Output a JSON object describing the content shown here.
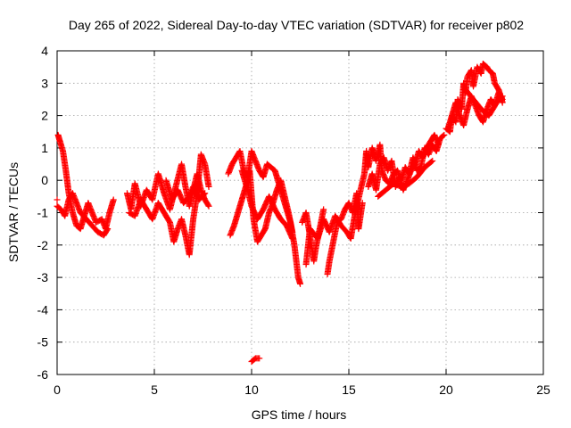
{
  "chart_data": {
    "type": "scatter",
    "title": "Day 265 of 2022, Sidereal Day-to-day VTEC variation (SDTVAR) for receiver p802",
    "xlabel": "GPS time / hours",
    "ylabel": "SDTVAR / TECUs",
    "xlim": [
      0,
      25
    ],
    "ylim": [
      -6,
      4
    ],
    "xticks": [
      0,
      5,
      10,
      15,
      20,
      25
    ],
    "yticks": [
      -6,
      -5,
      -4,
      -3,
      -2,
      -1,
      0,
      1,
      2,
      3,
      4
    ],
    "grid": true,
    "marker": "+",
    "color": "#ff0000",
    "series": [
      {
        "name": "p802",
        "trace": [
          [
            0.0,
            -0.6
          ],
          [
            0.05,
            1.4
          ],
          [
            0.15,
            1.2
          ],
          [
            0.3,
            0.9
          ],
          [
            0.45,
            0.3
          ],
          [
            0.6,
            -0.4
          ],
          [
            0.8,
            -1.0
          ],
          [
            1.0,
            -1.4
          ],
          [
            1.2,
            -1.5
          ],
          [
            1.4,
            -1.1
          ],
          [
            1.6,
            -0.7
          ],
          [
            1.8,
            -1.0
          ],
          [
            2.0,
            -1.3
          ],
          [
            2.3,
            -1.2
          ],
          [
            2.5,
            -1.5
          ],
          [
            2.7,
            -1.0
          ],
          [
            2.9,
            -0.6
          ],
          [
            0.0,
            -0.8
          ],
          [
            0.2,
            -0.9
          ],
          [
            0.4,
            -1.1
          ],
          [
            0.6,
            -0.6
          ],
          [
            0.8,
            -0.4
          ],
          [
            1.0,
            -0.7
          ],
          [
            1.2,
            -1.0
          ],
          [
            1.5,
            -1.2
          ],
          [
            1.8,
            -1.4
          ],
          [
            2.1,
            -1.6
          ],
          [
            2.4,
            -1.7
          ],
          [
            2.6,
            -1.5
          ],
          [
            3.6,
            -0.4
          ],
          [
            3.8,
            -0.9
          ],
          [
            4.0,
            -0.1
          ],
          [
            4.3,
            -0.8
          ],
          [
            4.6,
            -0.3
          ],
          [
            4.9,
            -0.6
          ],
          [
            5.2,
            0.2
          ],
          [
            5.5,
            -0.4
          ],
          [
            5.8,
            -0.9
          ],
          [
            6.1,
            -0.2
          ],
          [
            6.4,
            0.5
          ],
          [
            6.6,
            -0.2
          ],
          [
            6.8,
            -0.8
          ],
          [
            7.0,
            -0.3
          ],
          [
            7.2,
            0.2
          ],
          [
            7.4,
            -0.3
          ],
          [
            7.6,
            -0.6
          ],
          [
            7.8,
            -0.8
          ],
          [
            3.7,
            -1.0
          ],
          [
            4.0,
            -1.1
          ],
          [
            4.3,
            -0.6
          ],
          [
            4.6,
            -0.9
          ],
          [
            4.9,
            -1.2
          ],
          [
            5.2,
            -0.7
          ],
          [
            5.5,
            -1.0
          ],
          [
            5.8,
            -1.3
          ],
          [
            6.0,
            -1.9
          ],
          [
            6.2,
            -1.5
          ],
          [
            6.4,
            -1.2
          ],
          [
            6.6,
            -1.7
          ],
          [
            6.8,
            -2.3
          ],
          [
            7.0,
            -1.2
          ],
          [
            7.2,
            -0.4
          ],
          [
            7.4,
            0.8
          ],
          [
            7.6,
            0.5
          ],
          [
            7.8,
            -0.2
          ],
          [
            5.6,
            0.0
          ],
          [
            5.9,
            -0.6
          ],
          [
            6.2,
            -0.3
          ],
          [
            6.5,
            -0.7
          ],
          [
            6.8,
            -0.5
          ],
          [
            7.0,
            -0.2
          ],
          [
            7.3,
            -0.6
          ],
          [
            7.6,
            -0.4
          ],
          [
            8.8,
            0.2
          ],
          [
            9.0,
            0.5
          ],
          [
            9.2,
            0.7
          ],
          [
            9.4,
            0.9
          ],
          [
            9.6,
            0.3
          ],
          [
            9.8,
            0.1
          ],
          [
            10.0,
            0.9
          ],
          [
            10.2,
            0.6
          ],
          [
            10.4,
            0.3
          ],
          [
            10.6,
            0.1
          ],
          [
            10.8,
            0.5
          ],
          [
            11.0,
            0.4
          ],
          [
            11.2,
            0.3
          ],
          [
            11.4,
            -0.1
          ],
          [
            11.6,
            -0.5
          ],
          [
            11.8,
            -0.9
          ],
          [
            12.0,
            -1.3
          ],
          [
            12.2,
            -2.0
          ],
          [
            12.4,
            -3.0
          ],
          [
            12.5,
            -3.2
          ],
          [
            8.9,
            -1.7
          ],
          [
            9.1,
            -1.4
          ],
          [
            9.3,
            -1.0
          ],
          [
            9.5,
            -0.6
          ],
          [
            9.7,
            -0.2
          ],
          [
            9.9,
            0.3
          ],
          [
            10.1,
            -1.2
          ],
          [
            10.3,
            -1.9
          ],
          [
            10.5,
            -1.7
          ],
          [
            10.7,
            -1.5
          ],
          [
            10.9,
            -1.0
          ],
          [
            11.1,
            -0.7
          ],
          [
            11.3,
            -0.3
          ],
          [
            11.5,
            0.0
          ],
          [
            11.7,
            -0.5
          ],
          [
            11.9,
            -1.0
          ],
          [
            12.1,
            -1.6
          ],
          [
            9.5,
            0.3
          ],
          [
            9.8,
            -0.3
          ],
          [
            10.0,
            -0.8
          ],
          [
            10.3,
            -1.2
          ],
          [
            10.6,
            -0.9
          ],
          [
            10.9,
            -0.5
          ],
          [
            11.2,
            -0.9
          ],
          [
            11.5,
            -1.2
          ],
          [
            11.8,
            -1.4
          ],
          [
            12.1,
            -1.8
          ],
          [
            12.6,
            -1.3
          ],
          [
            12.8,
            -1.0
          ],
          [
            13.0,
            -1.7
          ],
          [
            13.2,
            -2.5
          ],
          [
            13.3,
            -2.1
          ],
          [
            13.5,
            -1.5
          ],
          [
            13.7,
            -0.9
          ],
          [
            13.9,
            -2.9
          ],
          [
            14.0,
            -2.5
          ],
          [
            14.2,
            -1.9
          ],
          [
            14.4,
            -1.3
          ],
          [
            14.6,
            -1.2
          ],
          [
            14.8,
            -0.9
          ],
          [
            15.0,
            -0.7
          ],
          [
            15.2,
            -1.0
          ],
          [
            15.4,
            -0.4
          ],
          [
            15.5,
            -1.5
          ],
          [
            15.7,
            -0.7
          ],
          [
            12.8,
            -2.6
          ],
          [
            13.0,
            -1.5
          ],
          [
            13.4,
            -1.8
          ],
          [
            13.7,
            -1.2
          ],
          [
            14.0,
            -1.6
          ],
          [
            14.3,
            -1.1
          ],
          [
            14.6,
            -1.4
          ],
          [
            14.9,
            -1.6
          ],
          [
            15.1,
            -1.8
          ],
          [
            15.3,
            -1.1
          ],
          [
            15.6,
            -0.3
          ],
          [
            15.8,
            0.2
          ],
          [
            15.9,
            0.9
          ],
          [
            16.0,
            0.4
          ],
          [
            16.2,
            1.0
          ],
          [
            16.4,
            0.6
          ],
          [
            16.6,
            1.1
          ],
          [
            16.7,
            0.3
          ],
          [
            16.9,
            0.0
          ],
          [
            17.1,
            -0.1
          ],
          [
            17.3,
            0.2
          ],
          [
            17.5,
            0.3
          ],
          [
            17.7,
            0.0
          ],
          [
            17.9,
            0.4
          ],
          [
            18.1,
            0.2
          ],
          [
            18.3,
            0.7
          ],
          [
            18.5,
            0.3
          ],
          [
            18.7,
            0.4
          ],
          [
            18.9,
            1.0
          ],
          [
            19.1,
            0.8
          ],
          [
            19.3,
            1.1
          ],
          [
            19.5,
            0.9
          ],
          [
            19.7,
            1.3
          ],
          [
            19.9,
            1.4
          ],
          [
            16.0,
            -0.2
          ],
          [
            16.2,
            0.2
          ],
          [
            16.4,
            -0.3
          ],
          [
            16.6,
            0.5
          ],
          [
            16.8,
            0.7
          ],
          [
            17.0,
            0.3
          ],
          [
            17.2,
            0.6
          ],
          [
            17.4,
            -0.2
          ],
          [
            17.6,
            0.1
          ],
          [
            17.8,
            -0.3
          ],
          [
            18.0,
            0.0
          ],
          [
            18.2,
            0.3
          ],
          [
            18.4,
            0.5
          ],
          [
            18.6,
            0.9
          ],
          [
            18.8,
            0.7
          ],
          [
            19.0,
            1.0
          ],
          [
            19.2,
            1.2
          ],
          [
            19.4,
            1.4
          ],
          [
            19.6,
            1.1
          ],
          [
            16.5,
            -0.5
          ],
          [
            16.9,
            -0.3
          ],
          [
            17.3,
            -0.1
          ],
          [
            17.7,
            -0.2
          ],
          [
            18.1,
            -0.1
          ],
          [
            18.5,
            0.1
          ],
          [
            18.9,
            0.4
          ],
          [
            19.3,
            0.6
          ],
          [
            20.0,
            1.6
          ],
          [
            20.2,
            1.5
          ],
          [
            20.3,
            2.0
          ],
          [
            20.5,
            1.8
          ],
          [
            20.6,
            2.5
          ],
          [
            20.8,
            2.2
          ],
          [
            20.9,
            3.0
          ],
          [
            21.0,
            2.7
          ],
          [
            21.1,
            3.2
          ],
          [
            21.3,
            3.4
          ],
          [
            21.4,
            2.9
          ],
          [
            21.6,
            3.5
          ],
          [
            21.8,
            3.3
          ],
          [
            21.9,
            3.6
          ],
          [
            22.1,
            3.5
          ],
          [
            22.2,
            3.4
          ],
          [
            22.4,
            3.3
          ],
          [
            22.5,
            3.0
          ],
          [
            22.7,
            2.8
          ],
          [
            22.8,
            2.6
          ],
          [
            22.9,
            2.4
          ],
          [
            20.1,
            1.6
          ],
          [
            20.3,
            2.0
          ],
          [
            20.5,
            2.4
          ],
          [
            20.7,
            2.0
          ],
          [
            20.9,
            1.7
          ],
          [
            21.1,
            2.2
          ],
          [
            21.3,
            2.6
          ],
          [
            21.5,
            2.3
          ],
          [
            21.7,
            2.0
          ],
          [
            21.9,
            1.8
          ],
          [
            22.1,
            2.2
          ],
          [
            22.3,
            2.5
          ],
          [
            22.5,
            2.3
          ],
          [
            22.7,
            2.7
          ],
          [
            22.9,
            2.5
          ],
          [
            21.0,
            2.8
          ],
          [
            21.4,
            2.5
          ],
          [
            21.8,
            2.2
          ],
          [
            22.2,
            2.0
          ],
          [
            22.6,
            2.4
          ],
          [
            22.9,
            2.6
          ],
          [
            10.0,
            -5.6
          ],
          [
            10.2,
            -5.5
          ],
          [
            10.4,
            -5.5
          ]
        ]
      }
    ]
  }
}
